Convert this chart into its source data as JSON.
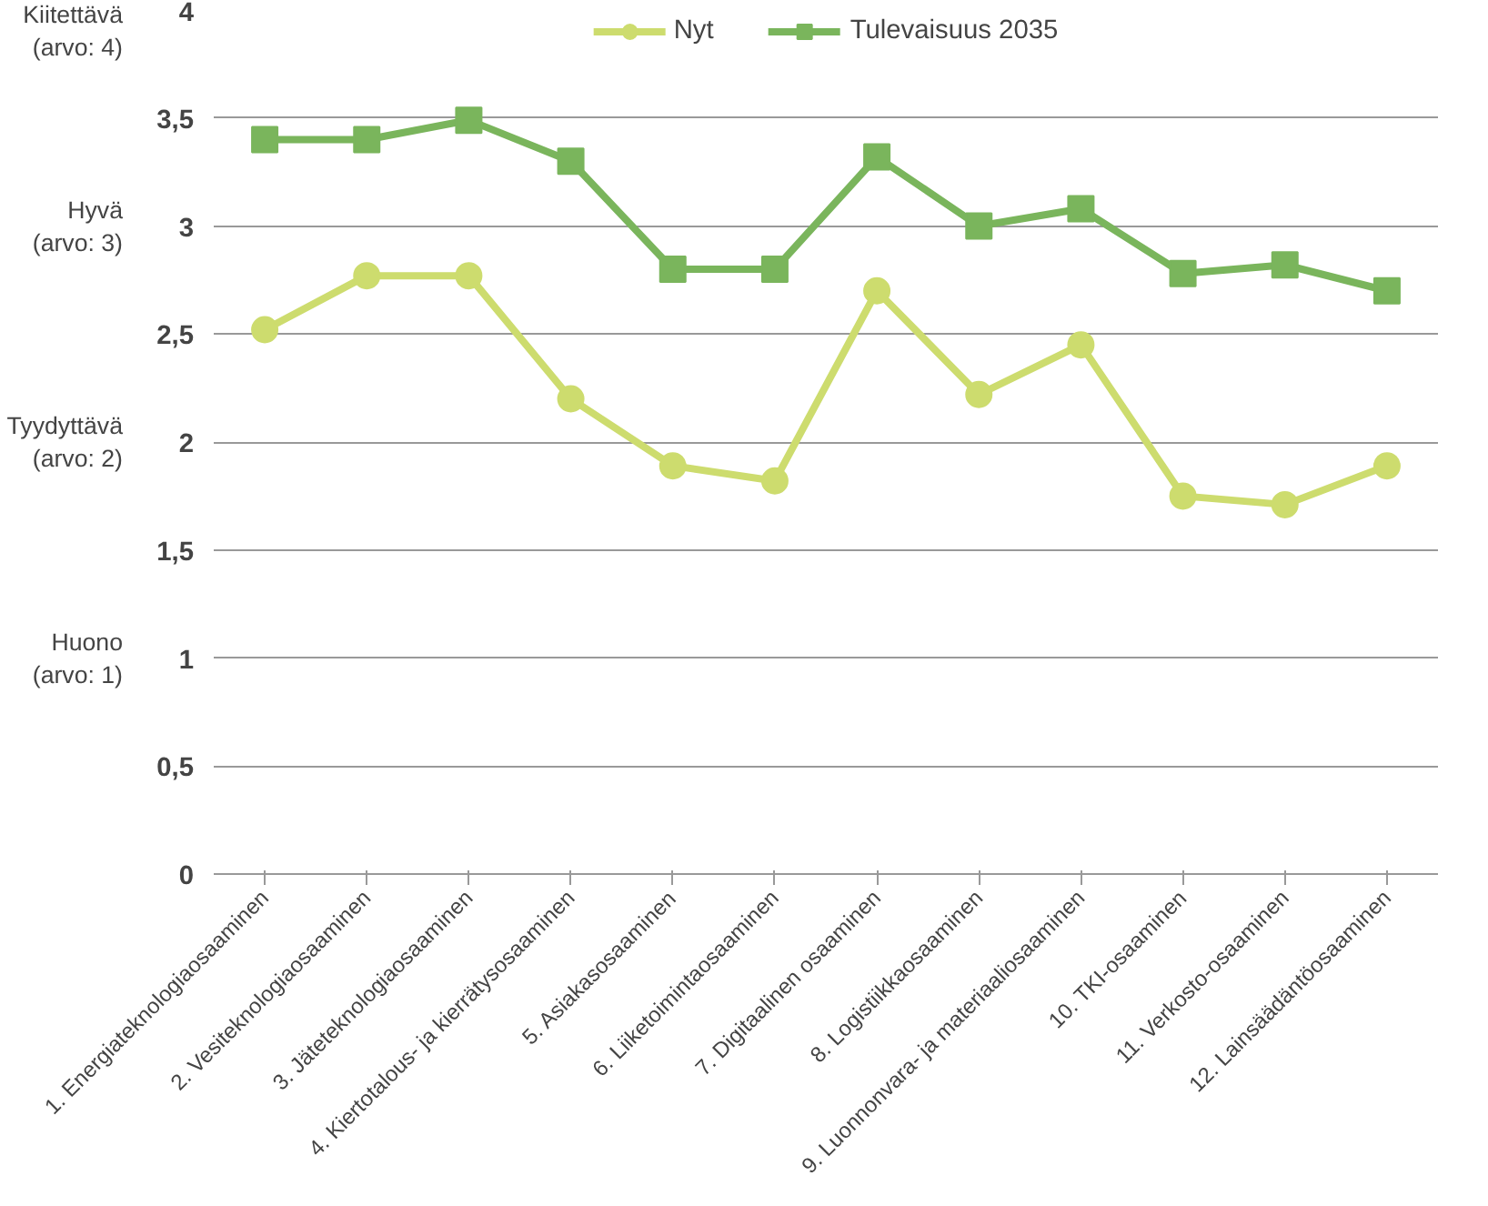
{
  "chart_data": {
    "type": "line",
    "categories": [
      "1. Energiateknologiaosaaminen",
      "2. Vesiteknologiaosaaminen",
      "3. Jäteteknologiaosaaminen",
      "4. Kiertotalous- ja kierrätysosaaminen",
      "5. Asiakasosaaminen",
      "6. Liiketoimintaosaaminen",
      "7. Digitaalinen osaaminen",
      "8. Logistiikkaosaaminen",
      "9. Luonnonvara- ja materiaaliosaaminen",
      "10. TKI-osaaminen",
      "11. Verkosto-osaaminen",
      "12. Lainsäädäntöosaaminen"
    ],
    "series": [
      {
        "name": "Nyt",
        "color": "#cddc6e",
        "marker": "circle",
        "values": [
          2.52,
          2.77,
          2.77,
          2.2,
          1.89,
          1.82,
          2.7,
          2.22,
          2.45,
          1.75,
          1.71,
          1.89
        ]
      },
      {
        "name": "Tulevaisuus 2035",
        "color": "#7ab55c",
        "marker": "square",
        "values": [
          3.4,
          3.4,
          3.49,
          3.3,
          2.8,
          2.8,
          3.32,
          3.0,
          3.08,
          2.78,
          2.82,
          2.7
        ]
      }
    ],
    "ylim": [
      0,
      4
    ],
    "yticks": [
      0,
      {
        "value": 0.5,
        "label": "0,5"
      },
      1,
      {
        "value": 1.5,
        "label": "1,5"
      },
      2,
      {
        "value": 2.5,
        "label": "2,5"
      },
      3,
      {
        "value": 3.5,
        "label": "3,5"
      },
      4
    ],
    "y2lim": [
      0,
      4
    ],
    "y2ticks": [
      {
        "value": 1,
        "label": "Huono\n(arvo: 1)"
      },
      {
        "value": 2,
        "label": "Tyydyttävä\n(arvo: 2)"
      },
      {
        "value": 3,
        "label": "Hyvä\n(arvo: 3)"
      },
      {
        "value": 4,
        "label": "Kiitettävä\n(arvo: 4)"
      }
    ],
    "grid": "y",
    "legend": "top",
    "line_style": "solid"
  }
}
